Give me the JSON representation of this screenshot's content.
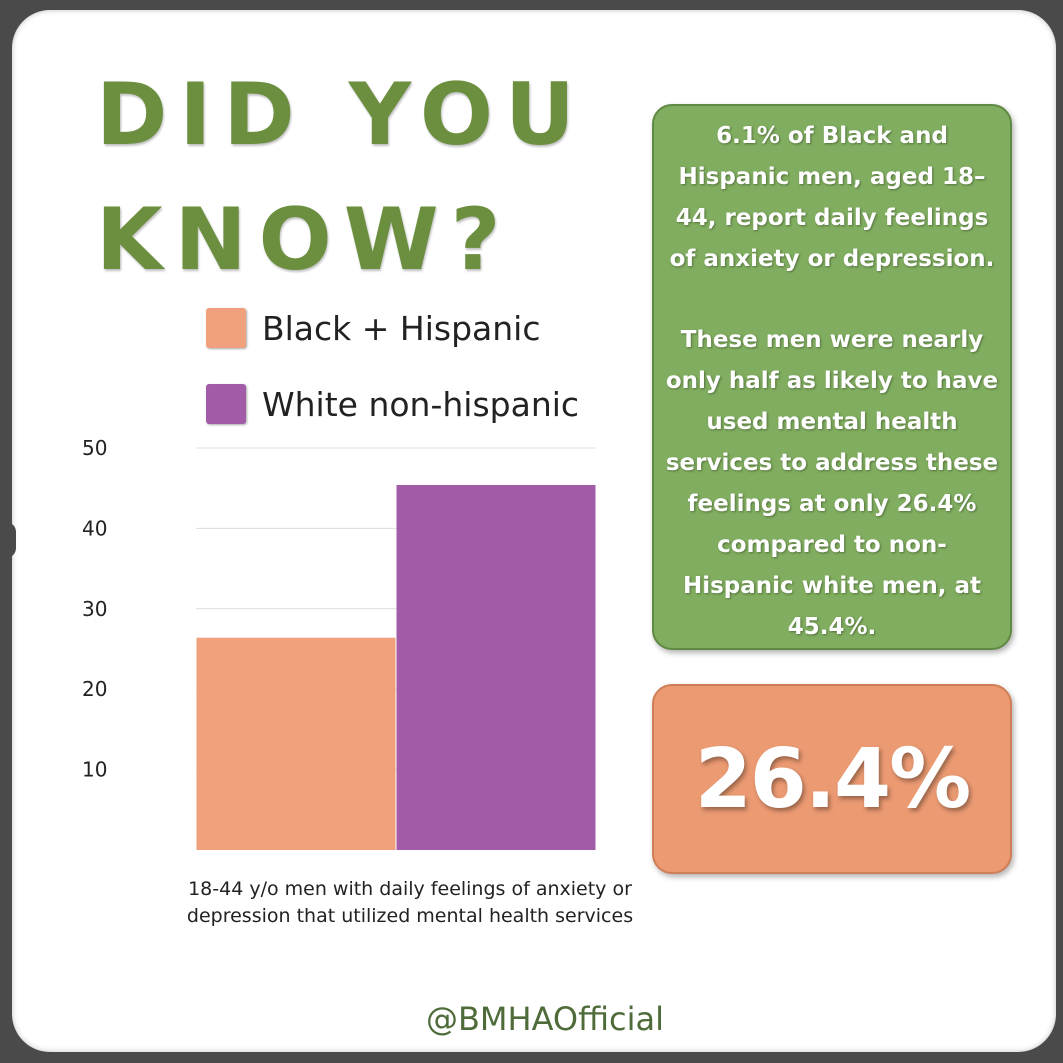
{
  "title": {
    "line1": "DID YOU",
    "line2": "KNOW?"
  },
  "legend": [
    {
      "label": "Black + Hispanic",
      "color": "#f0a07c"
    },
    {
      "label": "White non-hispanic",
      "color": "#a25ba6"
    }
  ],
  "chart_data": {
    "type": "bar",
    "categories": [
      "Black + Hispanic",
      "White non-hispanic"
    ],
    "values": [
      26.4,
      45.4
    ],
    "colors": [
      "#f0a07c",
      "#a25ba6"
    ],
    "ylim": [
      0,
      50
    ],
    "yticks": [
      10,
      20,
      30,
      40,
      50
    ],
    "grid": true,
    "legend_position": "top",
    "caption": "18-44 y/o men with daily feelings of anxiety or depression that utilized mental health services"
  },
  "info": {
    "paragraph1": "6.1% of Black and Hispanic men, aged 18–44, report daily feelings of anxiety or depression.",
    "paragraph2": "These men were nearly only half as likely to have used mental health services to address these feelings at only 26.4% compared to  non-Hispanic white men, at 45.4%."
  },
  "highlight": {
    "value": "26.4%"
  },
  "handle": "@BMHAOfficial",
  "colors": {
    "title_green": "#6b8f3e",
    "info_green": "#80ad5f",
    "highlight_orange": "#eb9a72"
  }
}
